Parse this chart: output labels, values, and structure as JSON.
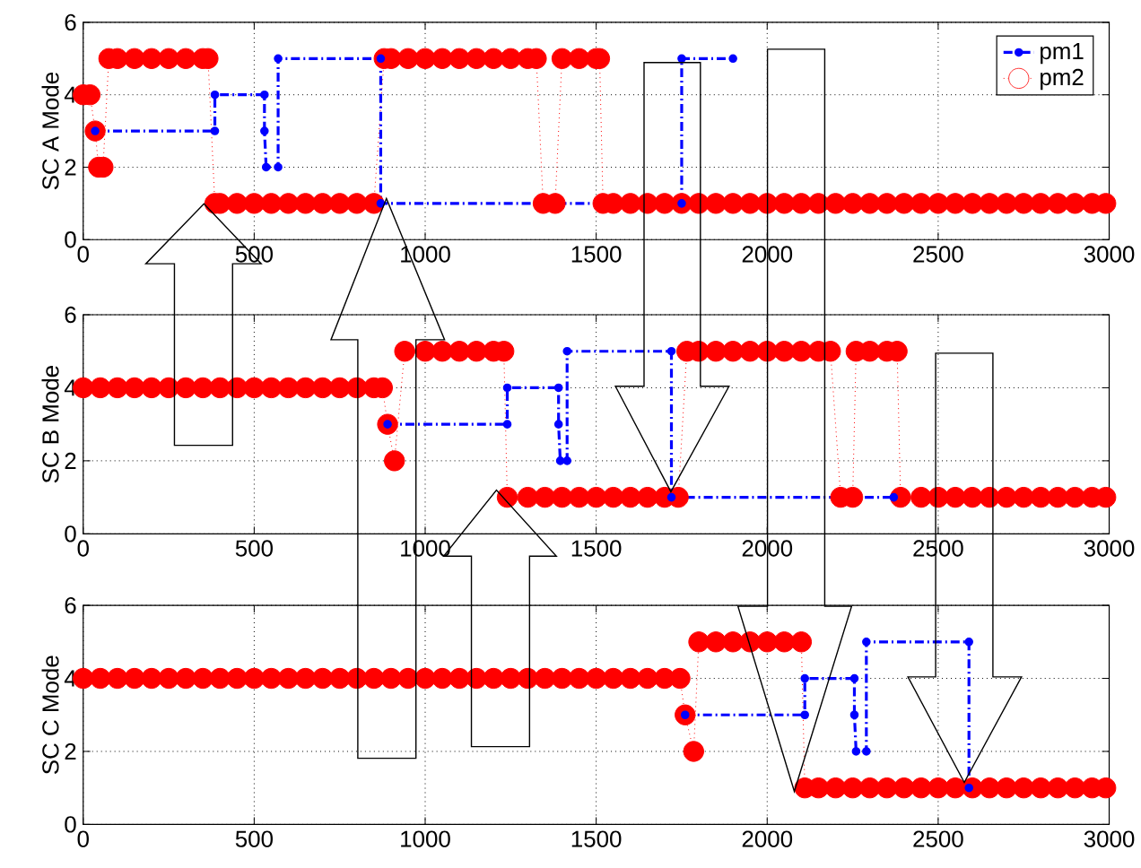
{
  "chart_data": [
    {
      "type": "line",
      "ylabel": "SC A Mode",
      "xlim": [
        0,
        3000
      ],
      "ylim": [
        0,
        6
      ],
      "xticks": [
        0,
        500,
        1000,
        1500,
        2000,
        2500,
        3000
      ],
      "yticks": [
        0,
        2,
        4,
        6
      ],
      "grid": true,
      "legend": "top right",
      "series": [
        {
          "name": "pm1",
          "color": "#0000ff",
          "marker": "circle",
          "line_style": "dashed",
          "x": [
            35,
            385,
            385,
            530,
            530,
            535,
            570,
            570,
            870,
            870,
            1750,
            1750,
            1900
          ],
          "values": [
            3,
            3,
            4,
            4,
            3,
            2,
            2,
            5,
            5,
            1,
            1,
            5,
            5
          ]
        },
        {
          "name": "pm2",
          "color": "#ff0000",
          "marker": "circle",
          "line_style": "dotted",
          "x": [
            0,
            20,
            35,
            45,
            58,
            75,
            100,
            150,
            200,
            250,
            300,
            350,
            365,
            385,
            400,
            450,
            500,
            550,
            600,
            650,
            700,
            750,
            800,
            850,
            880,
            900,
            950,
            1000,
            1050,
            1100,
            1150,
            1200,
            1250,
            1300,
            1325,
            1345,
            1380,
            1400,
            1450,
            1500,
            1510,
            1520,
            1550,
            1600,
            1650,
            1700,
            1750,
            1800,
            1850,
            1900,
            1950,
            2000,
            2050,
            2100,
            2150,
            2200,
            2250,
            2300,
            2350,
            2400,
            2450,
            2500,
            2550,
            2600,
            2650,
            2700,
            2750,
            2800,
            2850,
            2900,
            2950,
            2990
          ],
          "values": [
            4,
            4,
            3,
            2,
            2,
            5,
            5,
            5,
            5,
            5,
            5,
            5,
            5,
            1,
            1,
            1,
            1,
            1,
            1,
            1,
            1,
            1,
            1,
            1,
            5,
            5,
            5,
            5,
            5,
            5,
            5,
            5,
            5,
            5,
            5,
            1,
            1,
            5,
            5,
            5,
            5,
            1,
            1,
            1,
            1,
            1,
            1,
            1,
            1,
            1,
            1,
            1,
            1,
            1,
            1,
            1,
            1,
            1,
            1,
            1,
            1,
            1,
            1,
            1,
            1,
            1,
            1,
            1,
            1,
            1,
            1,
            1
          ]
        }
      ]
    },
    {
      "type": "line",
      "ylabel": "SC B Mode",
      "xlim": [
        0,
        3000
      ],
      "ylim": [
        0,
        6
      ],
      "xticks": [
        0,
        500,
        1000,
        1500,
        2000,
        2500,
        3000
      ],
      "yticks": [
        0,
        2,
        4,
        6
      ],
      "grid": true,
      "series": [
        {
          "color": "#0000ff",
          "marker": "circle",
          "line_style": "dashed",
          "x": [
            890,
            1240,
            1240,
            1390,
            1390,
            1395,
            1415,
            1415,
            1720,
            1720,
            2370
          ],
          "values": [
            3,
            3,
            4,
            4,
            3,
            2,
            2,
            5,
            5,
            1,
            1
          ]
        },
        {
          "color": "#ff0000",
          "marker": "circle",
          "line_style": "dotted",
          "x": [
            0,
            50,
            100,
            150,
            200,
            250,
            300,
            350,
            400,
            450,
            500,
            550,
            600,
            650,
            700,
            750,
            800,
            850,
            875,
            890,
            910,
            940,
            1000,
            1050,
            1100,
            1150,
            1200,
            1230,
            1240,
            1300,
            1350,
            1400,
            1450,
            1500,
            1550,
            1600,
            1650,
            1700,
            1740,
            1765,
            1800,
            1850,
            1900,
            1950,
            2000,
            2050,
            2100,
            2150,
            2185,
            2215,
            2250,
            2260,
            2300,
            2350,
            2380,
            2390,
            2450,
            2500,
            2550,
            2600,
            2650,
            2700,
            2750,
            2800,
            2850,
            2900,
            2950,
            2990
          ],
          "values": [
            4,
            4,
            4,
            4,
            4,
            4,
            4,
            4,
            4,
            4,
            4,
            4,
            4,
            4,
            4,
            4,
            4,
            4,
            4,
            3,
            2,
            5,
            5,
            5,
            5,
            5,
            5,
            5,
            1,
            1,
            1,
            1,
            1,
            1,
            1,
            1,
            1,
            1,
            1,
            5,
            5,
            5,
            5,
            5,
            5,
            5,
            5,
            5,
            5,
            1,
            1,
            5,
            5,
            5,
            5,
            1,
            1,
            1,
            1,
            1,
            1,
            1,
            1,
            1,
            1,
            1,
            1,
            1
          ]
        }
      ]
    },
    {
      "type": "line",
      "ylabel": "SC C Mode",
      "xlim": [
        0,
        3000
      ],
      "ylim": [
        0,
        6
      ],
      "xticks": [
        0,
        500,
        1000,
        1500,
        2000,
        2500,
        3000
      ],
      "yticks": [
        0,
        2,
        4,
        6
      ],
      "grid": true,
      "series": [
        {
          "color": "#0000ff",
          "marker": "circle",
          "line_style": "dashed",
          "x": [
            1760,
            2110,
            2110,
            2255,
            2255,
            2260,
            2290,
            2290,
            2590,
            2590
          ],
          "values": [
            3,
            3,
            4,
            4,
            3,
            2,
            2,
            5,
            5,
            1
          ]
        },
        {
          "color": "#ff0000",
          "marker": "circle",
          "line_style": "dotted",
          "x": [
            0,
            50,
            100,
            150,
            200,
            250,
            300,
            350,
            400,
            450,
            500,
            550,
            600,
            650,
            700,
            750,
            800,
            850,
            900,
            950,
            1000,
            1050,
            1100,
            1150,
            1200,
            1250,
            1300,
            1350,
            1400,
            1450,
            1500,
            1550,
            1600,
            1650,
            1700,
            1745,
            1760,
            1785,
            1800,
            1850,
            1900,
            1950,
            2000,
            2050,
            2100,
            2110,
            2150,
            2200,
            2250,
            2300,
            2350,
            2400,
            2450,
            2500,
            2550,
            2600,
            2650,
            2700,
            2750,
            2800,
            2850,
            2900,
            2950,
            2990
          ],
          "values": [
            4,
            4,
            4,
            4,
            4,
            4,
            4,
            4,
            4,
            4,
            4,
            4,
            4,
            4,
            4,
            4,
            4,
            4,
            4,
            4,
            4,
            4,
            4,
            4,
            4,
            4,
            4,
            4,
            4,
            4,
            4,
            4,
            4,
            4,
            4,
            4,
            3,
            2,
            5,
            5,
            5,
            5,
            5,
            5,
            5,
            1,
            1,
            1,
            1,
            1,
            1,
            1,
            1,
            1,
            1,
            1,
            1,
            1,
            1,
            1,
            1,
            1,
            1,
            1
          ]
        }
      ]
    }
  ]
}
